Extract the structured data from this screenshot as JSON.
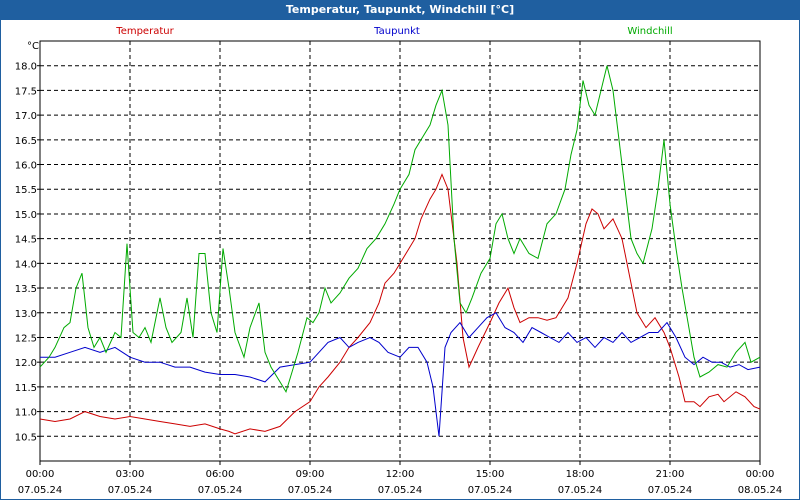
{
  "chart_data": {
    "type": "line",
    "title": "Temperatur, Taupunkt, Windchill [°C]",
    "unit": "°C",
    "ylim": [
      10.0,
      18.5
    ],
    "y_ticks": [
      10.5,
      11.0,
      11.5,
      12.0,
      12.5,
      13.0,
      13.5,
      14.0,
      14.5,
      15.0,
      15.5,
      16.0,
      16.5,
      17.0,
      17.5,
      18.0
    ],
    "xlim": [
      0,
      24
    ],
    "x_ticks": [
      {
        "x": 0,
        "time": "00:00",
        "date": "07.05.24"
      },
      {
        "x": 3,
        "time": "03:00",
        "date": "07.05.24"
      },
      {
        "x": 6,
        "time": "06:00",
        "date": "07.05.24"
      },
      {
        "x": 9,
        "time": "09:00",
        "date": "07.05.24"
      },
      {
        "x": 12,
        "time": "12:00",
        "date": "07.05.24"
      },
      {
        "x": 15,
        "time": "15:00",
        "date": "07.05.24"
      },
      {
        "x": 18,
        "time": "18:00",
        "date": "07.05.24"
      },
      {
        "x": 21,
        "time": "21:00",
        "date": "07.05.24"
      },
      {
        "x": 24,
        "time": "00:00",
        "date": "08.05.24"
      }
    ],
    "grid": true,
    "series": [
      {
        "name": "Temperatur",
        "color": "#cc0000",
        "points": [
          [
            0,
            10.85
          ],
          [
            0.5,
            10.8
          ],
          [
            1,
            10.85
          ],
          [
            1.5,
            11.0
          ],
          [
            2,
            10.9
          ],
          [
            2.5,
            10.85
          ],
          [
            3,
            10.9
          ],
          [
            3.5,
            10.85
          ],
          [
            4,
            10.8
          ],
          [
            4.5,
            10.75
          ],
          [
            5,
            10.7
          ],
          [
            5.5,
            10.75
          ],
          [
            6,
            10.65
          ],
          [
            6.3,
            10.6
          ],
          [
            6.5,
            10.55
          ],
          [
            7,
            10.65
          ],
          [
            7.5,
            10.6
          ],
          [
            8,
            10.7
          ],
          [
            8.5,
            11.0
          ],
          [
            9,
            11.2
          ],
          [
            9.3,
            11.5
          ],
          [
            9.6,
            11.7
          ],
          [
            10,
            12.0
          ],
          [
            10.3,
            12.3
          ],
          [
            10.6,
            12.5
          ],
          [
            11,
            12.8
          ],
          [
            11.3,
            13.2
          ],
          [
            11.5,
            13.6
          ],
          [
            11.8,
            13.8
          ],
          [
            12,
            14.0
          ],
          [
            12.3,
            14.3
          ],
          [
            12.5,
            14.5
          ],
          [
            12.7,
            14.9
          ],
          [
            13,
            15.3
          ],
          [
            13.2,
            15.5
          ],
          [
            13.4,
            15.8
          ],
          [
            13.6,
            15.5
          ],
          [
            13.9,
            14.0
          ],
          [
            14.1,
            12.5
          ],
          [
            14.3,
            11.9
          ],
          [
            14.6,
            12.3
          ],
          [
            15,
            12.8
          ],
          [
            15.3,
            13.2
          ],
          [
            15.6,
            13.5
          ],
          [
            15.8,
            13.1
          ],
          [
            16,
            12.8
          ],
          [
            16.3,
            12.9
          ],
          [
            16.6,
            12.9
          ],
          [
            16.9,
            12.85
          ],
          [
            17.2,
            12.9
          ],
          [
            17.6,
            13.3
          ],
          [
            17.9,
            14.0
          ],
          [
            18.2,
            14.8
          ],
          [
            18.4,
            15.1
          ],
          [
            18.6,
            15.0
          ],
          [
            18.8,
            14.7
          ],
          [
            19.1,
            14.9
          ],
          [
            19.4,
            14.5
          ],
          [
            19.7,
            13.6
          ],
          [
            19.9,
            13.0
          ],
          [
            20.2,
            12.7
          ],
          [
            20.5,
            12.9
          ],
          [
            20.8,
            12.6
          ],
          [
            21,
            12.3
          ],
          [
            21.3,
            11.7
          ],
          [
            21.5,
            11.2
          ],
          [
            21.8,
            11.2
          ],
          [
            22,
            11.1
          ],
          [
            22.3,
            11.3
          ],
          [
            22.6,
            11.35
          ],
          [
            22.8,
            11.2
          ],
          [
            23.2,
            11.4
          ],
          [
            23.5,
            11.3
          ],
          [
            23.8,
            11.1
          ],
          [
            24,
            11.05
          ]
        ]
      },
      {
        "name": "Taupunkt",
        "color": "#0000cc",
        "points": [
          [
            0,
            12.1
          ],
          [
            0.5,
            12.1
          ],
          [
            1,
            12.2
          ],
          [
            1.5,
            12.3
          ],
          [
            2,
            12.2
          ],
          [
            2.5,
            12.3
          ],
          [
            3,
            12.1
          ],
          [
            3.5,
            12.0
          ],
          [
            4,
            12.0
          ],
          [
            4.5,
            11.9
          ],
          [
            5,
            11.9
          ],
          [
            5.5,
            11.8
          ],
          [
            6,
            11.75
          ],
          [
            6.5,
            11.75
          ],
          [
            7,
            11.7
          ],
          [
            7.5,
            11.6
          ],
          [
            8,
            11.9
          ],
          [
            8.5,
            11.95
          ],
          [
            9,
            12.0
          ],
          [
            9.3,
            12.2
          ],
          [
            9.6,
            12.4
          ],
          [
            10,
            12.5
          ],
          [
            10.3,
            12.3
          ],
          [
            10.6,
            12.4
          ],
          [
            11,
            12.5
          ],
          [
            11.3,
            12.4
          ],
          [
            11.6,
            12.2
          ],
          [
            12,
            12.1
          ],
          [
            12.3,
            12.3
          ],
          [
            12.6,
            12.3
          ],
          [
            12.9,
            12.0
          ],
          [
            13.1,
            11.5
          ],
          [
            13.3,
            10.5
          ],
          [
            13.5,
            12.3
          ],
          [
            13.7,
            12.6
          ],
          [
            14,
            12.8
          ],
          [
            14.3,
            12.5
          ],
          [
            14.6,
            12.7
          ],
          [
            14.9,
            12.9
          ],
          [
            15.2,
            13.0
          ],
          [
            15.5,
            12.7
          ],
          [
            15.8,
            12.6
          ],
          [
            16.1,
            12.4
          ],
          [
            16.4,
            12.7
          ],
          [
            16.7,
            12.6
          ],
          [
            17,
            12.5
          ],
          [
            17.3,
            12.4
          ],
          [
            17.6,
            12.6
          ],
          [
            17.9,
            12.4
          ],
          [
            18.2,
            12.5
          ],
          [
            18.5,
            12.3
          ],
          [
            18.8,
            12.5
          ],
          [
            19.1,
            12.4
          ],
          [
            19.4,
            12.6
          ],
          [
            19.7,
            12.4
          ],
          [
            20,
            12.5
          ],
          [
            20.3,
            12.6
          ],
          [
            20.6,
            12.6
          ],
          [
            20.9,
            12.8
          ],
          [
            21.2,
            12.5
          ],
          [
            21.5,
            12.1
          ],
          [
            21.8,
            11.95
          ],
          [
            22.1,
            12.1
          ],
          [
            22.4,
            12.0
          ],
          [
            22.7,
            12.0
          ],
          [
            23,
            11.9
          ],
          [
            23.3,
            11.95
          ],
          [
            23.6,
            11.85
          ],
          [
            24,
            11.9
          ]
        ]
      },
      {
        "name": "Windchill",
        "color": "#00aa00",
        "points": [
          [
            0,
            11.9
          ],
          [
            0.3,
            12.1
          ],
          [
            0.5,
            12.3
          ],
          [
            0.8,
            12.7
          ],
          [
            1,
            12.8
          ],
          [
            1.2,
            13.5
          ],
          [
            1.4,
            13.8
          ],
          [
            1.6,
            12.7
          ],
          [
            1.8,
            12.3
          ],
          [
            2,
            12.5
          ],
          [
            2.2,
            12.2
          ],
          [
            2.5,
            12.6
          ],
          [
            2.7,
            12.5
          ],
          [
            2.9,
            14.4
          ],
          [
            3.1,
            12.6
          ],
          [
            3.3,
            12.5
          ],
          [
            3.5,
            12.7
          ],
          [
            3.7,
            12.4
          ],
          [
            4,
            13.3
          ],
          [
            4.2,
            12.7
          ],
          [
            4.4,
            12.4
          ],
          [
            4.7,
            12.6
          ],
          [
            4.9,
            13.3
          ],
          [
            5.1,
            12.5
          ],
          [
            5.3,
            14.2
          ],
          [
            5.5,
            14.2
          ],
          [
            5.7,
            13.0
          ],
          [
            5.9,
            12.6
          ],
          [
            6.1,
            14.3
          ],
          [
            6.3,
            13.5
          ],
          [
            6.5,
            12.6
          ],
          [
            6.8,
            12.1
          ],
          [
            7,
            12.7
          ],
          [
            7.3,
            13.2
          ],
          [
            7.5,
            12.2
          ],
          [
            7.7,
            11.9
          ],
          [
            8,
            11.6
          ],
          [
            8.2,
            11.4
          ],
          [
            8.4,
            11.8
          ],
          [
            8.6,
            12.2
          ],
          [
            8.9,
            12.9
          ],
          [
            9.1,
            12.8
          ],
          [
            9.3,
            13.0
          ],
          [
            9.5,
            13.5
          ],
          [
            9.7,
            13.2
          ],
          [
            10,
            13.4
          ],
          [
            10.3,
            13.7
          ],
          [
            10.6,
            13.9
          ],
          [
            10.9,
            14.3
          ],
          [
            11.2,
            14.5
          ],
          [
            11.5,
            14.8
          ],
          [
            11.8,
            15.2
          ],
          [
            12,
            15.5
          ],
          [
            12.3,
            15.8
          ],
          [
            12.5,
            16.3
          ],
          [
            12.7,
            16.5
          ],
          [
            13,
            16.8
          ],
          [
            13.2,
            17.2
          ],
          [
            13.4,
            17.5
          ],
          [
            13.6,
            16.8
          ],
          [
            13.8,
            14.5
          ],
          [
            14,
            13.2
          ],
          [
            14.2,
            13.0
          ],
          [
            14.4,
            13.3
          ],
          [
            14.7,
            13.8
          ],
          [
            15,
            14.1
          ],
          [
            15.2,
            14.8
          ],
          [
            15.4,
            15.0
          ],
          [
            15.6,
            14.5
          ],
          [
            15.8,
            14.2
          ],
          [
            16,
            14.5
          ],
          [
            16.3,
            14.2
          ],
          [
            16.6,
            14.1
          ],
          [
            16.9,
            14.8
          ],
          [
            17.2,
            15.0
          ],
          [
            17.5,
            15.5
          ],
          [
            17.7,
            16.2
          ],
          [
            17.9,
            16.7
          ],
          [
            18.1,
            17.7
          ],
          [
            18.3,
            17.2
          ],
          [
            18.5,
            17.0
          ],
          [
            18.7,
            17.5
          ],
          [
            18.9,
            18.0
          ],
          [
            19.1,
            17.5
          ],
          [
            19.3,
            16.5
          ],
          [
            19.5,
            15.5
          ],
          [
            19.7,
            14.5
          ],
          [
            19.9,
            14.2
          ],
          [
            20.1,
            14.0
          ],
          [
            20.4,
            14.7
          ],
          [
            20.6,
            15.5
          ],
          [
            20.8,
            16.5
          ],
          [
            21,
            15.2
          ],
          [
            21.2,
            14.3
          ],
          [
            21.4,
            13.5
          ],
          [
            21.6,
            12.8
          ],
          [
            21.8,
            12.1
          ],
          [
            22,
            11.7
          ],
          [
            22.3,
            11.8
          ],
          [
            22.6,
            11.95
          ],
          [
            22.9,
            11.9
          ],
          [
            23.2,
            12.2
          ],
          [
            23.5,
            12.4
          ],
          [
            23.7,
            12.0
          ],
          [
            24,
            12.1
          ]
        ]
      }
    ]
  }
}
